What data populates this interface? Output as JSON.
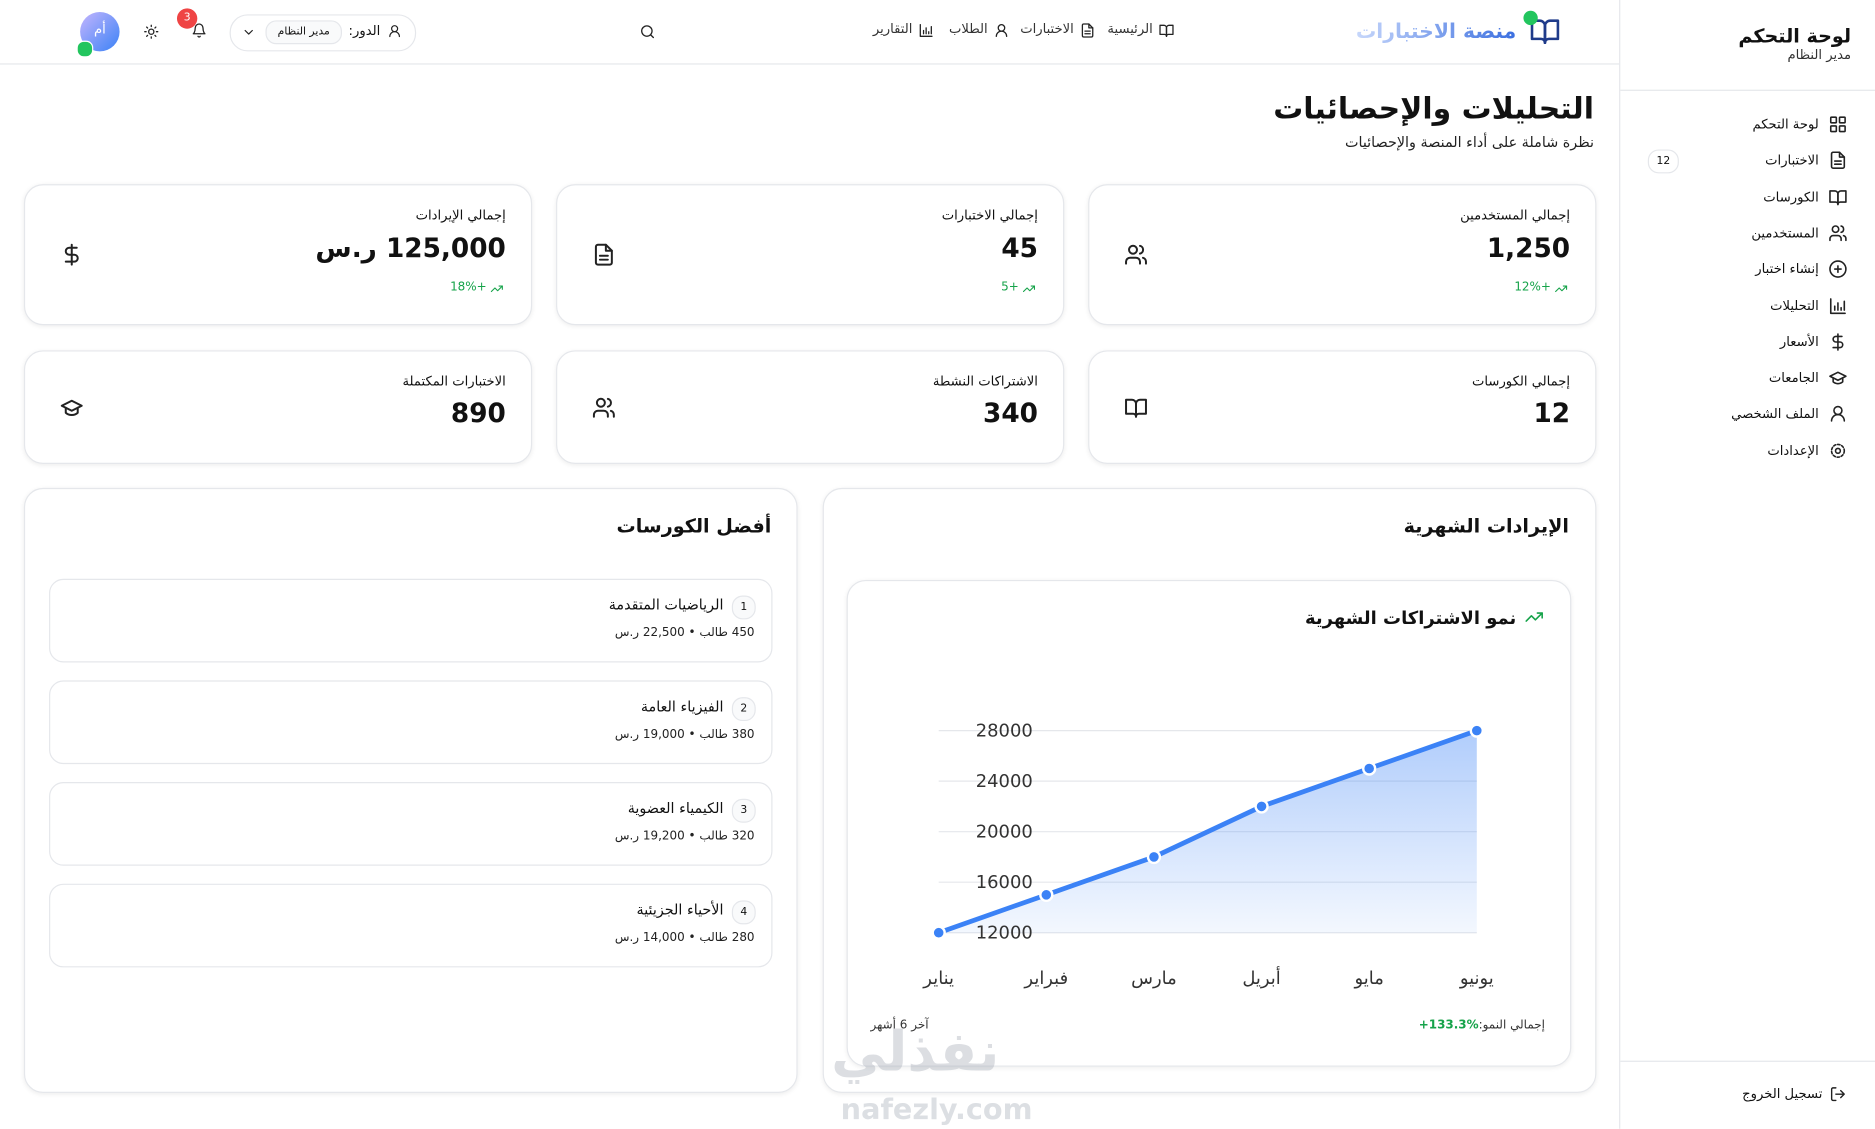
{
  "sidebar": {
    "title": "لوحة التحكم",
    "subtitle": "مدير النظام",
    "menu": [
      {
        "label": "لوحة التحكم"
      },
      {
        "label": "الاختبارات",
        "badge": 12
      },
      {
        "label": "الكورسات"
      },
      {
        "label": "المستخدمين"
      },
      {
        "label": "إنشاء اختبار"
      },
      {
        "label": "التحليلات"
      },
      {
        "label": "الأسعار"
      },
      {
        "label": "الجامعات"
      },
      {
        "label": "الملف الشخصي"
      },
      {
        "label": "الإعدادات"
      }
    ],
    "logout": "تسجيل الخروج"
  },
  "header": {
    "brand": "منصة الاختبارات",
    "nav": [
      "الرئيسية",
      "الاختبارات",
      "الطلاب",
      "التقارير"
    ],
    "role_label": "الدور:",
    "role_value": "مدير النظام",
    "notifications": 3,
    "avatar": "أم"
  },
  "page": {
    "title": "التحليلات والإحصائيات",
    "subtitle": "نظرة شاملة على أداء المنصة والإحصائيات"
  },
  "stats": [
    {
      "label": "إجمالي المستخدمين",
      "value": "1,250",
      "change": "+12%"
    },
    {
      "label": "إجمالي الاختبارات",
      "value": "45",
      "change": "+5"
    },
    {
      "label": "إجمالي الإيرادات",
      "value": "125,000 ر.س",
      "change": "+18%"
    },
    {
      "label": "إجمالي الكورسات",
      "value": "12"
    },
    {
      "label": "الاشتراكات النشطة",
      "value": "340"
    },
    {
      "label": "الاختبارات المكتملة",
      "value": "890"
    }
  ],
  "revenue": {
    "title": "الإيرادات الشهرية",
    "chart_data": {
      "type": "line",
      "title": "نمو الاشتراكات الشهرية",
      "categories": [
        "يناير",
        "فبراير",
        "مارس",
        "أبريل",
        "مايو",
        "يونيو"
      ],
      "values": [
        12000,
        15000,
        18000,
        22000,
        25000,
        28000
      ],
      "color": "#3b82f6",
      "ylim": [
        12000,
        28000
      ],
      "yticks": [
        12000,
        16000,
        20000,
        24000,
        28000
      ],
      "grid": true,
      "footer_label": "إجمالي النمو:",
      "footer_value": "+133.3%",
      "period": "آخر 6 أشهر"
    }
  },
  "top_courses": {
    "title": "أفضل الكورسات",
    "items": [
      {
        "rank": 1,
        "name": "الرياضيات المتقدمة",
        "meta": "450 طالب • 22,500 ر.س"
      },
      {
        "rank": 2,
        "name": "الفيزياء العامة",
        "meta": "380 طالب • 19,000 ر.س"
      },
      {
        "rank": 3,
        "name": "الكيمياء العضوية",
        "meta": "320 طالب • 19,200 ر.س"
      },
      {
        "rank": 4,
        "name": "الأحياء الجزيئية",
        "meta": "280 طالب • 14,000 ر.س"
      }
    ]
  },
  "watermark": {
    "logo": "نفذلي",
    "url": "nafezly.com"
  }
}
